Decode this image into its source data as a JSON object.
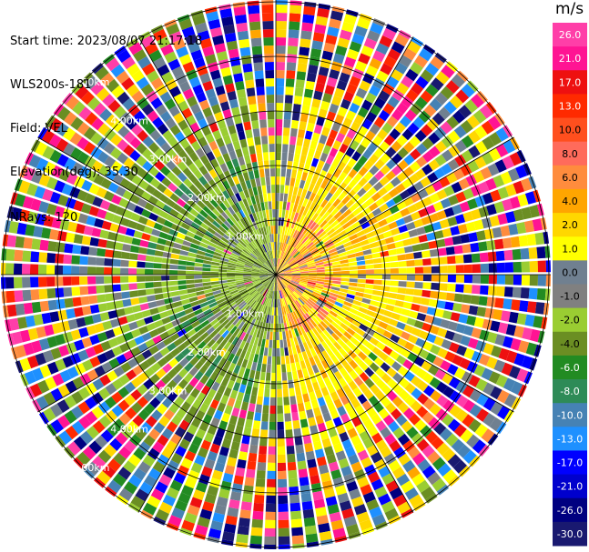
{
  "header": {
    "start_time": "Start time: 2023/08/07 21:17:18",
    "instrument": "WLS200s-181",
    "field": "Field: VEL",
    "elevation": "Elevation(deg): 35.30",
    "nrays": "NRays: 120"
  },
  "rings": [
    {
      "label_a": "1.00km",
      "label_b": "1.00km"
    },
    {
      "label_a": "2.00km",
      "label_b": "2.00km"
    },
    {
      "label_a": "3.00km",
      "label_b": "3.00km"
    },
    {
      "label_a": "4.00km",
      "label_b": "4.00km"
    },
    {
      "label_a": "5.00km",
      "label_b": "5.00km"
    }
  ],
  "colorbar": {
    "unit": "m/s",
    "ticks": [
      "26.0",
      "21.0",
      "17.0",
      "13.0",
      "10.0",
      "8.0",
      "6.0",
      "4.0",
      "2.0",
      "1.0",
      "0.0",
      "-1.0",
      "-2.0",
      "-4.0",
      "-6.0",
      "-8.0",
      "-10.0",
      "-13.0",
      "-17.0",
      "-21.0",
      "-26.0",
      "-30.0"
    ],
    "colors": [
      "#ff3ea8",
      "#ff1493",
      "#ee1010",
      "#ff2a00",
      "#ff4f1e",
      "#ff6b5b",
      "#ff8c3d",
      "#ffa500",
      "#ffd700",
      "#ffff00",
      "#708090",
      "#808080",
      "#9acd32",
      "#6b8e23",
      "#228b22",
      "#2e8b57",
      "#4682b4",
      "#1e90ff",
      "#0000ff",
      "#0000cd",
      "#000080",
      "#191970"
    ]
  },
  "chart_data": {
    "type": "ppi",
    "field": "VEL",
    "units": "m/s",
    "rays": 120,
    "range_rings_km": [
      1,
      2,
      3,
      4,
      5
    ]
  }
}
